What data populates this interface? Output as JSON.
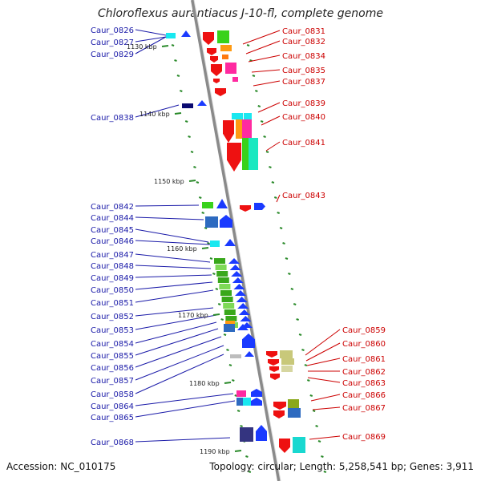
{
  "title": "Chloroflexus aurantiacus J-10-fl, complete genome",
  "footer": {
    "accession": "Accession: NC_010175",
    "summary": "Topology: circular; Length: 5,258,541 bp; Genes: 3,911"
  },
  "colors": {
    "backbone": "#8a8a8a",
    "ticks": "#2a8a2a",
    "left_labels": "#1a1aa8",
    "right_labels": "#cc0000"
  },
  "kbp_labels": [
    {
      "text": "1130 kbp"
    },
    {
      "text": "1140 kbp"
    },
    {
      "text": "1150 kbp"
    },
    {
      "text": "1160 kbp"
    },
    {
      "text": "1170 kbp"
    },
    {
      "text": "1180 kbp"
    },
    {
      "text": "1190 kbp"
    }
  ],
  "left_genes": [
    {
      "label": "Caur_0826"
    },
    {
      "label": "Caur_0827"
    },
    {
      "label": "Caur_0829"
    },
    {
      "label": "Caur_0838"
    },
    {
      "label": "Caur_0842"
    },
    {
      "label": "Caur_0844"
    },
    {
      "label": "Caur_0845"
    },
    {
      "label": "Caur_0846"
    },
    {
      "label": "Caur_0847"
    },
    {
      "label": "Caur_0848"
    },
    {
      "label": "Caur_0849"
    },
    {
      "label": "Caur_0850"
    },
    {
      "label": "Caur_0851"
    },
    {
      "label": "Caur_0852"
    },
    {
      "label": "Caur_0853"
    },
    {
      "label": "Caur_0854"
    },
    {
      "label": "Caur_0855"
    },
    {
      "label": "Caur_0856"
    },
    {
      "label": "Caur_0857"
    },
    {
      "label": "Caur_0858"
    },
    {
      "label": "Caur_0864"
    },
    {
      "label": "Caur_0865"
    },
    {
      "label": "Caur_0868"
    }
  ],
  "right_genes": [
    {
      "label": "Caur_0831"
    },
    {
      "label": "Caur_0832"
    },
    {
      "label": "Caur_0834"
    },
    {
      "label": "Caur_0835"
    },
    {
      "label": "Caur_0837"
    },
    {
      "label": "Caur_0839"
    },
    {
      "label": "Caur_0840"
    },
    {
      "label": "Caur_0841"
    },
    {
      "label": "Caur_0843"
    },
    {
      "label": "Caur_0859"
    },
    {
      "label": "Caur_0860"
    },
    {
      "label": "Caur_0861"
    },
    {
      "label": "Caur_0862"
    },
    {
      "label": "Caur_0863"
    },
    {
      "label": "Caur_0866"
    },
    {
      "label": "Caur_0867"
    },
    {
      "label": "Caur_0869"
    }
  ]
}
